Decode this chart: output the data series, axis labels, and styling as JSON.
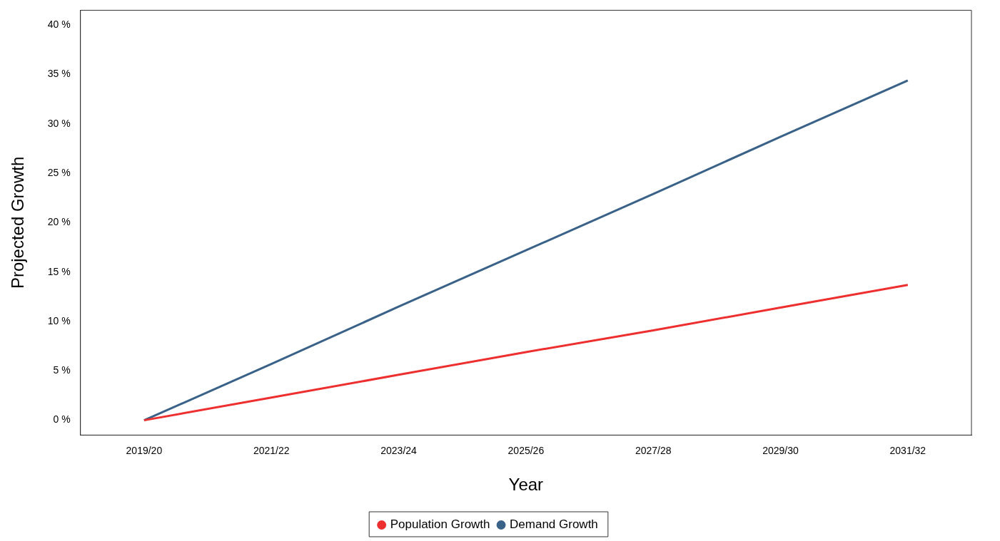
{
  "chart_data": {
    "type": "line",
    "xlabel": "Year",
    "ylabel": "Projected Growth",
    "categories": [
      "2019/20",
      "2021/22",
      "2023/24",
      "2025/26",
      "2027/28",
      "2029/30",
      "2031/32"
    ],
    "series": [
      {
        "name": "Population Growth",
        "color": "#ee2f2f",
        "values": [
          0,
          2.3,
          4.6,
          6.9,
          9.1,
          11.4,
          13.7
        ]
      },
      {
        "name": "Demand Growth",
        "color": "#3a6289",
        "values": [
          0,
          5.7,
          11.5,
          17.2,
          22.9,
          28.7,
          34.4
        ]
      }
    ],
    "ylim": [
      -1.5,
      41.5
    ],
    "yticks": [
      {
        "value": 0,
        "label": "0 %"
      },
      {
        "value": 5,
        "label": "5 %"
      },
      {
        "value": 10,
        "label": "10 %"
      },
      {
        "value": 15,
        "label": "15 %"
      },
      {
        "value": 20,
        "label": "20 %"
      },
      {
        "value": 25,
        "label": "25 %"
      },
      {
        "value": 30,
        "label": "30 %"
      },
      {
        "value": 35,
        "label": "35 %"
      },
      {
        "value": 40,
        "label": "40 %"
      }
    ],
    "grid": false,
    "legend": "bottom",
    "marker": "none",
    "line_style": "solid"
  }
}
